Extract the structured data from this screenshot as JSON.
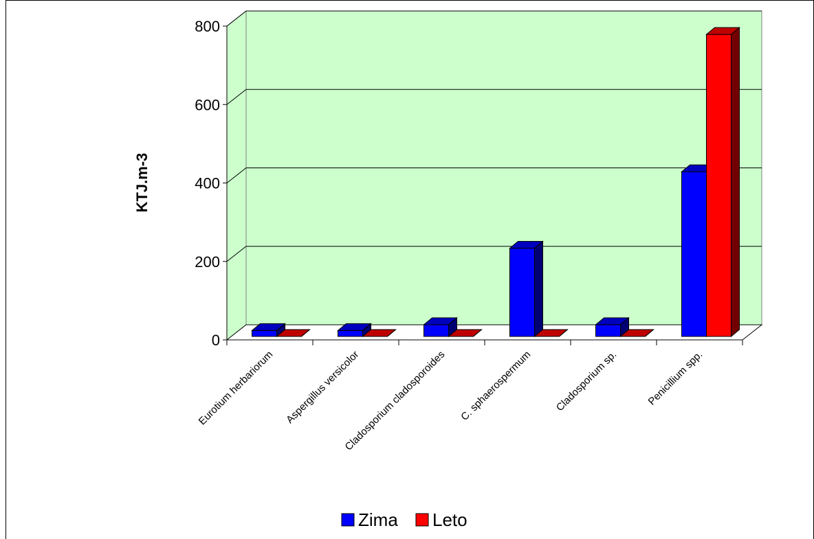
{
  "chart_data": {
    "type": "bar",
    "categories": [
      "Eurotium herbariorum",
      "Aspergillus versicolor",
      "Cladosporium cladosporoides",
      "C. sphaerospermum",
      "Cladosporium sp.",
      "Penicillium spp."
    ],
    "series": [
      {
        "name": "Zima",
        "color": "#0000ff",
        "values": [
          15,
          15,
          30,
          225,
          30,
          420
        ]
      },
      {
        "name": "Leto",
        "color": "#ff0000",
        "values": [
          0,
          0,
          0,
          0,
          0,
          770
        ]
      }
    ],
    "ylabel": "KTJ.m-3",
    "ylim": [
      0,
      800
    ],
    "yticks": [
      0,
      200,
      400,
      600,
      800
    ],
    "grid": true,
    "legend_position": "bottom",
    "style": "3d",
    "wall_color": "#ccffcc"
  }
}
